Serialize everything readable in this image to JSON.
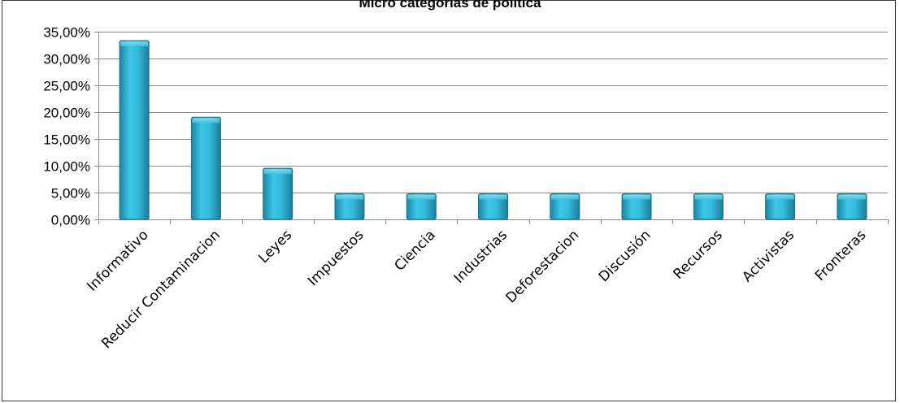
{
  "chart_data": {
    "type": "bar",
    "title": "Micro categorias de política",
    "categories": [
      "Informativo",
      "Reducir Contaminacion",
      "Leyes",
      "Impuestos",
      "Ciencia",
      "Industrias",
      "Deforestacion",
      "Discusión",
      "Recursos",
      "Activistas",
      "Fronteras"
    ],
    "values": [
      0.3333,
      0.1905,
      0.0952,
      0.0476,
      0.0476,
      0.0476,
      0.0476,
      0.0476,
      0.0476,
      0.0476,
      0.0476
    ],
    "ylim": [
      0,
      0.35
    ],
    "yticks": [
      "0,00%",
      "5,00%",
      "10,00%",
      "15,00%",
      "20,00%",
      "25,00%",
      "30,00%",
      "35,00%"
    ],
    "xlabel": "",
    "ylabel": "",
    "grid": true,
    "legend": "none",
    "bar_color": "#31b5d6",
    "bar_edge_color": "#1e6f86"
  }
}
